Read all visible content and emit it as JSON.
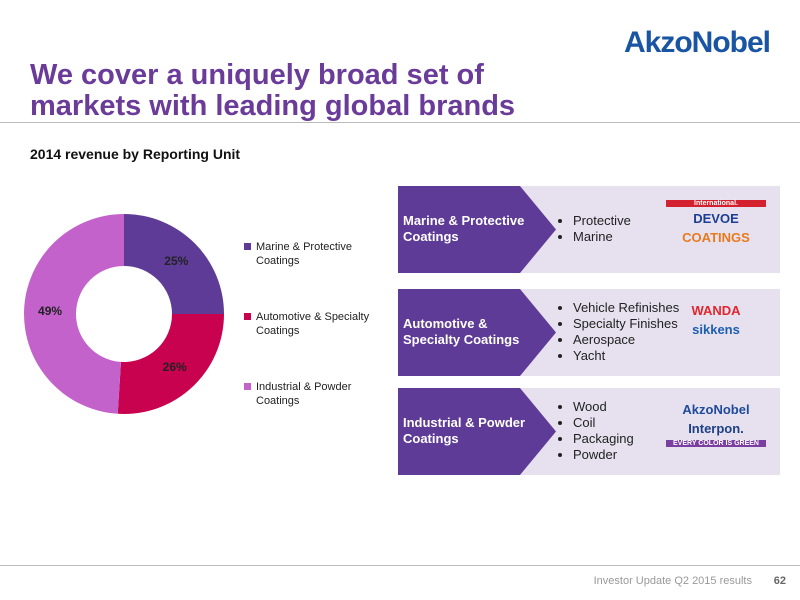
{
  "logo": "AkzoNobel",
  "title": "We cover a uniquely broad set of markets with leading global brands",
  "chart_data": {
    "type": "pie",
    "title": "2014 revenue by Reporting Unit",
    "categories": [
      "Marine & Protective Coatings",
      "Automotive & Specialty Coatings",
      "Industrial & Powder Coatings"
    ],
    "values": [
      25,
      26,
      49
    ],
    "value_labels": [
      "25%",
      "26%",
      "49%"
    ],
    "colors": [
      "#5e3b96",
      "#c8024e",
      "#c462cc"
    ]
  },
  "panels": [
    {
      "title": "Marine & Protective Coatings",
      "items": [
        "Protective",
        "Marine"
      ],
      "brands": [
        {
          "text": "International.",
          "color": "#d3212f"
        },
        {
          "text": "DEVOE",
          "color": "#1b3f94"
        },
        {
          "text": "COATINGS",
          "color": "#e97a1c"
        }
      ]
    },
    {
      "title": "Automotive & Specialty Coatings",
      "items": [
        "Vehicle Refinishes",
        "Specialty Finishes",
        "Aerospace",
        "Yacht"
      ],
      "brands": [
        {
          "text": "WANDA",
          "color": "#e0262e"
        },
        {
          "text": "sikkens",
          "color": "#1d5fae"
        }
      ]
    },
    {
      "title": "Industrial & Powder Coatings",
      "items": [
        "Wood",
        "Coil",
        "Packaging",
        "Powder"
      ],
      "brands": [
        {
          "text": "AkzoNobel",
          "color": "#1d4a9a"
        },
        {
          "text": "Interpon.",
          "color": "#1d3f86"
        },
        {
          "text": "EVERY COLOR IS GREEN",
          "color": "#7a3fa0"
        }
      ]
    }
  ],
  "footer": {
    "text": "Investor Update Q2 2015 results",
    "page": "62"
  }
}
